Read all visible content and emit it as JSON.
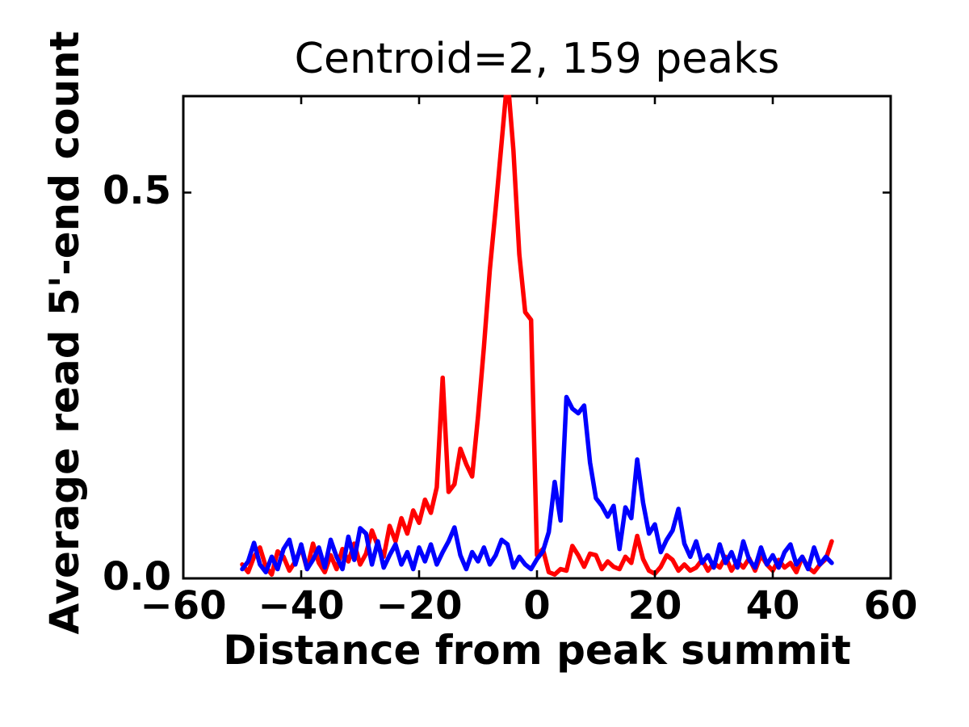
{
  "chart_data": {
    "type": "line",
    "title": "Centroid=2, 159 peaks",
    "xlabel": "Distance from peak summit",
    "ylabel": "Average read 5'-end count",
    "xlim": [
      -60,
      60
    ],
    "ylim": [
      0,
      0.625
    ],
    "xticks": [
      -60,
      -40,
      -20,
      0,
      20,
      40,
      60
    ],
    "xtick_labels": [
      "−60",
      "−40",
      "−20",
      "0",
      "20",
      "40",
      "60"
    ],
    "yticks": [
      0.0,
      0.5
    ],
    "ytick_labels": [
      "0.0",
      "0.5"
    ],
    "grid": false,
    "legend": null,
    "x": [
      -50,
      -49,
      -48,
      -47,
      -46,
      -45,
      -44,
      -43,
      -42,
      -41,
      -40,
      -39,
      -38,
      -37,
      -36,
      -35,
      -34,
      -33,
      -32,
      -31,
      -30,
      -29,
      -28,
      -27,
      -26,
      -25,
      -24,
      -23,
      -22,
      -21,
      -20,
      -19,
      -18,
      -17,
      -16,
      -15,
      -14,
      -13,
      -12,
      -11,
      -10,
      -9,
      -8,
      -7,
      -6,
      -5,
      -4,
      -3,
      -2,
      -1,
      0,
      1,
      2,
      3,
      4,
      5,
      6,
      7,
      8,
      9,
      10,
      11,
      12,
      13,
      14,
      15,
      16,
      17,
      18,
      19,
      20,
      21,
      22,
      23,
      24,
      25,
      26,
      27,
      28,
      29,
      30,
      31,
      32,
      33,
      34,
      35,
      36,
      37,
      38,
      39,
      40,
      41,
      42,
      43,
      44,
      45,
      46,
      47,
      48,
      49,
      50
    ],
    "series": [
      {
        "name": "red-line",
        "color": "#ff0000",
        "values": [
          0.018,
          0.008,
          0.028,
          0.04,
          0.015,
          0.005,
          0.035,
          0.028,
          0.01,
          0.022,
          0.04,
          0.012,
          0.045,
          0.02,
          0.008,
          0.03,
          0.012,
          0.038,
          0.022,
          0.045,
          0.018,
          0.032,
          0.062,
          0.042,
          0.028,
          0.068,
          0.048,
          0.078,
          0.058,
          0.088,
          0.072,
          0.102,
          0.085,
          0.118,
          0.26,
          0.112,
          0.122,
          0.168,
          0.148,
          0.132,
          0.21,
          0.3,
          0.4,
          0.48,
          0.565,
          0.65,
          0.555,
          0.42,
          0.345,
          0.335,
          0.03,
          0.038,
          0.008,
          0.005,
          0.012,
          0.01,
          0.042,
          0.03,
          0.015,
          0.032,
          0.03,
          0.012,
          0.022,
          0.015,
          0.012,
          0.028,
          0.02,
          0.055,
          0.025,
          0.01,
          0.006,
          0.015,
          0.03,
          0.024,
          0.01,
          0.018,
          0.01,
          0.014,
          0.024,
          0.01,
          0.02,
          0.014,
          0.028,
          0.01,
          0.022,
          0.014,
          0.026,
          0.01,
          0.03,
          0.018,
          0.01,
          0.024,
          0.014,
          0.02,
          0.008,
          0.028,
          0.014,
          0.008,
          0.018,
          0.025,
          0.048
        ]
      },
      {
        "name": "blue-line",
        "color": "#0000ff",
        "values": [
          0.012,
          0.022,
          0.046,
          0.018,
          0.008,
          0.028,
          0.012,
          0.038,
          0.05,
          0.018,
          0.044,
          0.012,
          0.024,
          0.04,
          0.014,
          0.05,
          0.028,
          0.012,
          0.054,
          0.024,
          0.065,
          0.058,
          0.018,
          0.048,
          0.014,
          0.03,
          0.044,
          0.018,
          0.034,
          0.012,
          0.04,
          0.022,
          0.044,
          0.018,
          0.034,
          0.048,
          0.066,
          0.03,
          0.012,
          0.034,
          0.022,
          0.04,
          0.018,
          0.03,
          0.05,
          0.044,
          0.014,
          0.028,
          0.018,
          0.012,
          0.025,
          0.035,
          0.06,
          0.125,
          0.075,
          0.235,
          0.22,
          0.214,
          0.224,
          0.15,
          0.104,
          0.094,
          0.08,
          0.094,
          0.038,
          0.092,
          0.078,
          0.154,
          0.098,
          0.058,
          0.07,
          0.034,
          0.05,
          0.062,
          0.09,
          0.045,
          0.028,
          0.048,
          0.02,
          0.03,
          0.014,
          0.044,
          0.02,
          0.034,
          0.014,
          0.048,
          0.024,
          0.014,
          0.04,
          0.018,
          0.03,
          0.014,
          0.034,
          0.044,
          0.018,
          0.028,
          0.012,
          0.04,
          0.018,
          0.028,
          0.02
        ]
      }
    ],
    "colors": {
      "spine": "#000000",
      "background": "#ffffff",
      "text": "#000000"
    }
  }
}
